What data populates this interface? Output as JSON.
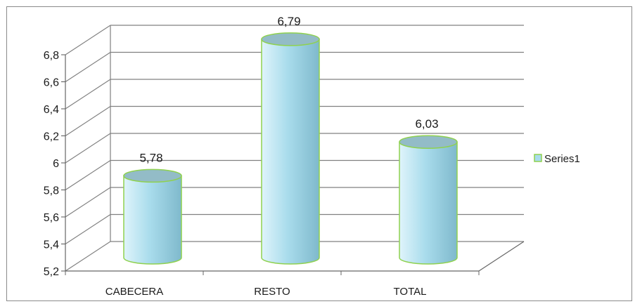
{
  "chart_data": {
    "type": "bar",
    "style": "3d-cylinder",
    "categories": [
      "CABECERA",
      "RESTO",
      "TOTAL"
    ],
    "series": [
      {
        "name": "Series1",
        "values": [
          5.78,
          6.79,
          6.03
        ],
        "labels": [
          "5,78",
          "6,79",
          "6,03"
        ]
      }
    ],
    "title": "",
    "xlabel": "",
    "ylabel": "",
    "ylim": [
      5.2,
      6.8
    ],
    "yticks": [
      5.2,
      5.4,
      5.6,
      5.8,
      6,
      6.2,
      6.4,
      6.6,
      6.8
    ],
    "ytick_labels": [
      "5,2",
      "5,4",
      "5,6",
      "5,8",
      "6",
      "6,2",
      "6,4",
      "6,6",
      "6,8"
    ],
    "grid": true,
    "legend_position": "right",
    "colors": {
      "bar_light": "#dff4fb",
      "bar_mid": "#a9dcec",
      "bar_dark": "#7fb9cc",
      "bar_top": "#93bcc7",
      "bar_outline": "#8fd14f",
      "grid": "#808080"
    }
  }
}
